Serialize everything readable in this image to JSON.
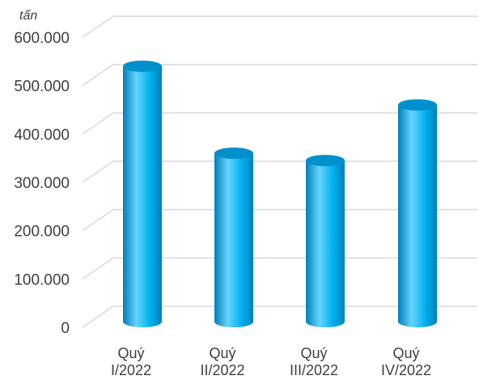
{
  "chart_data": {
    "type": "bar",
    "unit_label": "tấn",
    "categories": [
      [
        "Quý",
        "I/2022"
      ],
      [
        "Quý",
        "II/2022"
      ],
      [
        "Quý",
        "III/2022"
      ],
      [
        "Quý",
        "IV/2022"
      ]
    ],
    "values": [
      525000,
      345000,
      330000,
      445000
    ],
    "ylim": [
      0,
      600000
    ],
    "yticks": [
      {
        "value": 0,
        "label": "0"
      },
      {
        "value": 100000,
        "label": "100.000"
      },
      {
        "value": 200000,
        "label": "200.000"
      },
      {
        "value": 300000,
        "label": "300.000"
      },
      {
        "value": 400000,
        "label": "400.000"
      },
      {
        "value": 500000,
        "label": "500.000"
      },
      {
        "value": 600000,
        "label": "600.000"
      }
    ],
    "grid": true,
    "colors": {
      "bar_main": "#00b0f0",
      "bar_light": "#66d4ff",
      "bar_dark": "#0080b8",
      "bar_top": "#0090cc",
      "grid": "#d9d9d9",
      "text": "#3f3f3f"
    }
  }
}
